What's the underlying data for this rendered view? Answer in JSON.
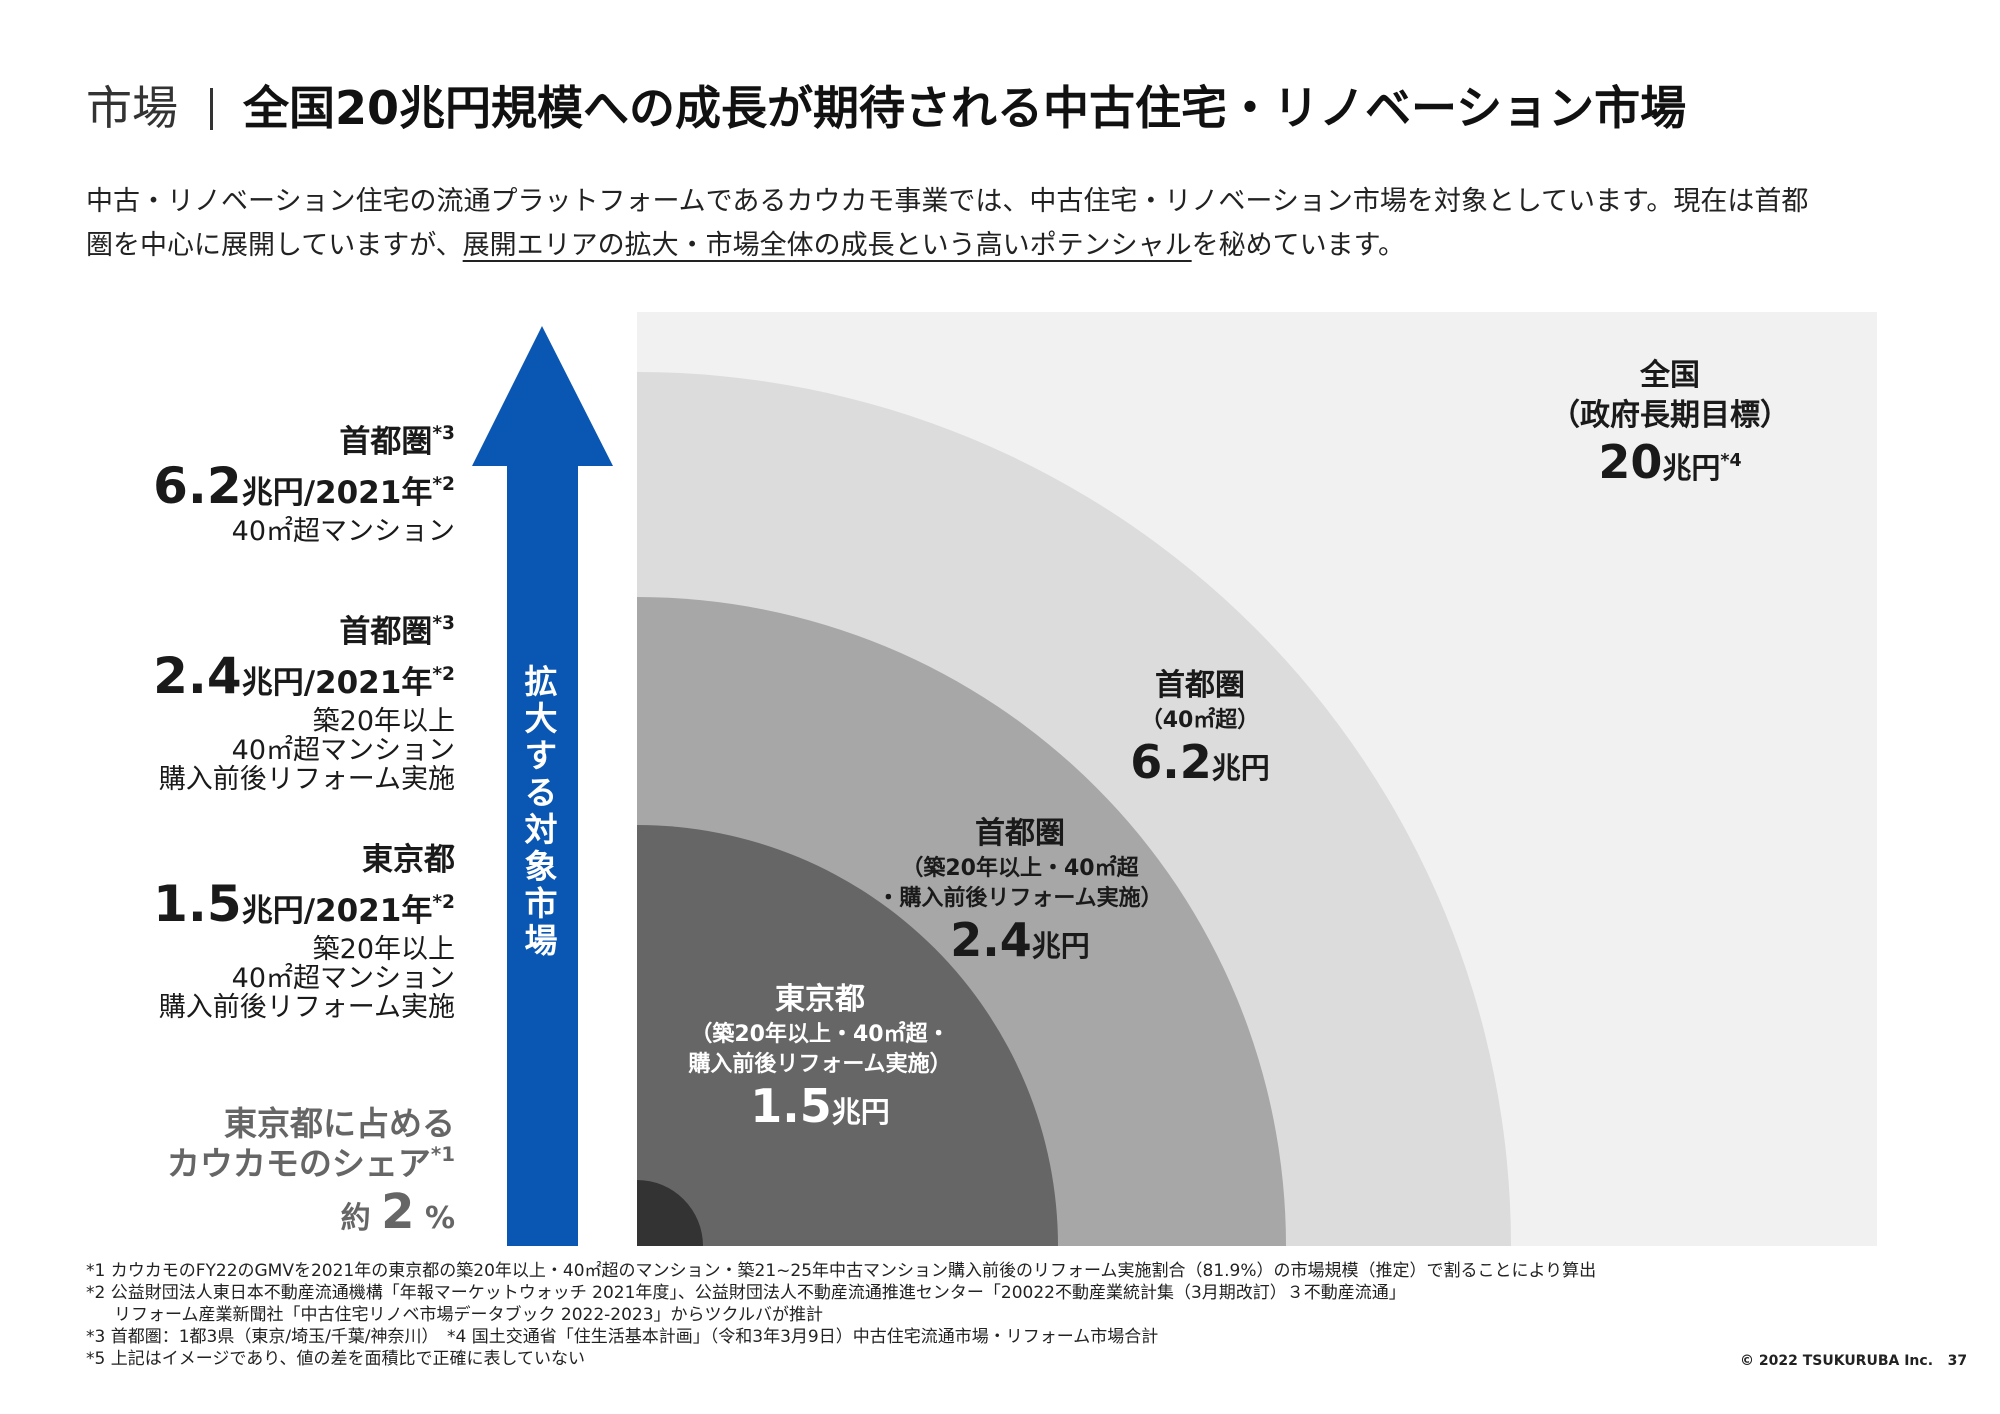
{
  "header": {
    "section": "市場",
    "title": "全国20兆円規模への成長が期待される中古住宅・リノベーション市場"
  },
  "intro": {
    "line1": "中古・リノベーション住宅の流通プラットフォームであるカウカモ事業では、中古住宅・リノベーション市場を対象としています。現在は首都",
    "line2_a": "圏を中心に展開していますが、",
    "line2_u": "展開エリアの拡大・市場全体の成長という高いポテンシャル",
    "line2_b": "を秘めています。"
  },
  "arrow": {
    "label": "拡大する対象市場",
    "color": "#0a56b3"
  },
  "left_blocks": [
    {
      "area": "首都圏",
      "area_note": "*3",
      "value_num": "6.2",
      "value_unit": "兆円/2021年",
      "value_note": "*2",
      "desc": [
        "40㎡超マンション"
      ]
    },
    {
      "area": "首都圏",
      "area_note": "*3",
      "value_num": "2.4",
      "value_unit": "兆円/2021年",
      "value_note": "*2",
      "desc": [
        "築20年以上",
        "40㎡超マンション",
        "購入前後リフォーム実施"
      ]
    },
    {
      "area": "東京都",
      "area_note": "",
      "value_num": "1.5",
      "value_unit": "兆円/2021年",
      "value_note": "*2",
      "desc": [
        "築20年以上",
        "40㎡超マンション",
        "購入前後リフォーム実施"
      ]
    }
  ],
  "share": {
    "line1": "東京都に占める",
    "line2": "カウカモのシェア",
    "line2_note": "*1",
    "prefix": "約",
    "value": "2",
    "unit": "%"
  },
  "rings": {
    "background_color": "#f1f1f1",
    "colors": [
      "#dcdcdc",
      "#a7a7a7",
      "#666666",
      "#333333"
    ],
    "nationwide": {
      "area": "全国",
      "sub": "（政府長期目標）",
      "value_num": "20",
      "value_unit": "兆円",
      "note": "*4"
    },
    "shutoken_40": {
      "area": "首都圏",
      "sub": "（40㎡超）",
      "value_num": "6.2",
      "value_unit": "兆円"
    },
    "shutoken_20": {
      "area": "首都圏",
      "sub1": "（築20年以上・40㎡超",
      "sub2": "・購入前後リフォーム実施）",
      "value_num": "2.4",
      "value_unit": "兆円"
    },
    "tokyo": {
      "area": "東京都",
      "sub1": "（築20年以上・40㎡超・",
      "sub2": "購入前後リフォーム実施）",
      "value_num": "1.5",
      "value_unit": "兆円"
    }
  },
  "notes": [
    "*1 カウカモのFY22のGMVを2021年の東京都の築20年以上・40㎡超のマンション・築21~25年中古マンション購入前後のリフォーム実施割合（81.9%）の市場規模（推定）で割ることにより算出",
    "*2 公益財団法人東日本不動産流通機構「年報マーケットウォッチ 2021年度」、公益財団法人不動産流通推進センター「20022不動産業統計集（3月期改訂）３不動産流通」",
    "リフォーム産業新聞社「中古住宅リノベ市場データブック 2022-2023」からツクルバが推計",
    "*3 首都圏：1都3県（東京/埼玉/千葉/神奈川）　*4 国土交通省「住生活基本計画」（令和3年3月9日）中古住宅流通市場・リフォーム市場合計",
    "*5 上記はイメージであり、値の差を面積比で正確に表していない"
  ],
  "footer": {
    "copyright": "© 2022 TSUKURUBA Inc.",
    "page": "37"
  }
}
